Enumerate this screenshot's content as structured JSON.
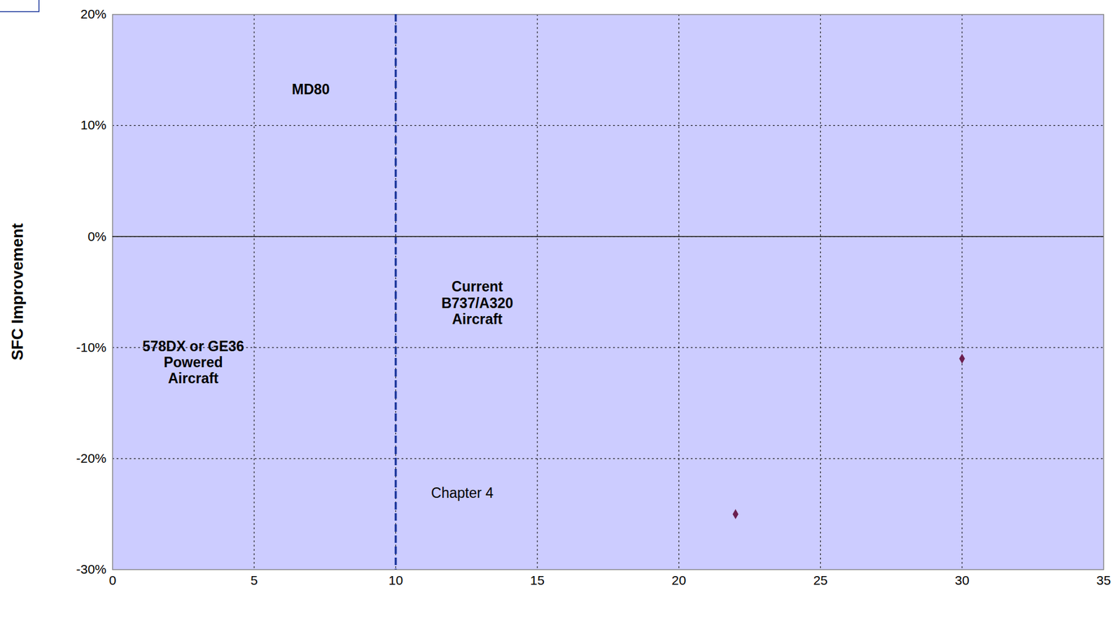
{
  "chart_data": {
    "type": "scatter",
    "y_label": "SFC Improvement",
    "x": [
      22,
      30
    ],
    "values": [
      -25,
      -11
    ],
    "color": "#6b1f4f",
    "marker": "diamond",
    "xlim": [
      0,
      35
    ],
    "xticks": [
      0,
      5,
      10,
      15,
      20,
      25,
      30,
      35
    ],
    "ylim": [
      -30,
      20
    ],
    "yticks": [
      {
        "value": 20,
        "label": "20%"
      },
      {
        "value": 10,
        "label": "10%"
      },
      {
        "value": 0,
        "label": "0%"
      },
      {
        "value": -10,
        "label": "-10%"
      },
      {
        "value": -20,
        "label": "-20%"
      },
      {
        "value": -30,
        "label": "-30%"
      }
    ],
    "grid": true,
    "reference_lines": [
      {
        "x": 10,
        "label": "Chapter 4",
        "label_x": 12.35,
        "label_y": -23.1,
        "color": "#1f3a9e",
        "line_style": "dashed"
      },
      {
        "y": 0,
        "color": "#333333",
        "line_style": "solid"
      }
    ],
    "annotations": [
      {
        "text": "MD80",
        "x": 7.0,
        "y": 13.3
      },
      {
        "text": "578DX or GE36\nPowered\nAircraft",
        "x": 2.85,
        "y": -11.3
      },
      {
        "text": "Current\nB737/A320\nAircraft",
        "x": 12.88,
        "y": -5.96
      }
    ]
  }
}
